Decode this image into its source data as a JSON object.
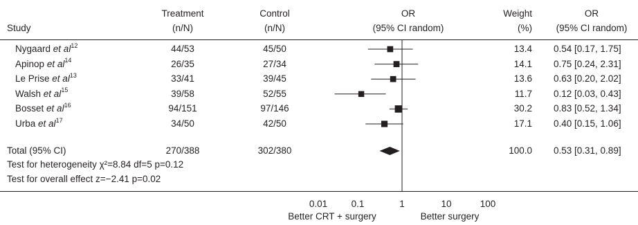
{
  "headers": {
    "study": "Study",
    "treatment": [
      "Treatment",
      "(n/N)"
    ],
    "control": [
      "Control",
      "(n/N)"
    ],
    "or_plot": [
      "OR",
      "(95% CI random)"
    ],
    "weight": [
      "Weight",
      "(%)"
    ],
    "or_text": [
      "OR",
      "(95% CI random)"
    ]
  },
  "rows": [
    {
      "study": "Nygaard",
      "etal": "et al",
      "ref": "12",
      "treatment": "44/53",
      "control": "45/50",
      "weight": "13.4",
      "or_text": "0.54 [0.17, 1.75]"
    },
    {
      "study": "Apinop",
      "etal": "et al",
      "ref": "14",
      "treatment": "26/35",
      "control": "27/34",
      "weight": "14.1",
      "or_text": "0.75 [0.24, 2.31]"
    },
    {
      "study": "Le Prise",
      "etal": "et al",
      "ref": "13",
      "treatment": "33/41",
      "control": "39/45",
      "weight": "13.6",
      "or_text": "0.63 [0.20, 2.02]"
    },
    {
      "study": "Walsh",
      "etal": "et al",
      "ref": "15",
      "treatment": "39/58",
      "control": "52/55",
      "weight": "11.7",
      "or_text": "0.12 [0.03, 0.43]"
    },
    {
      "study": "Bosset",
      "etal": "et al",
      "ref": "16",
      "treatment": "94/151",
      "control": "97/146",
      "weight": "30.2",
      "or_text": "0.83 [0.52, 1.34]"
    },
    {
      "study": "Urba",
      "etal": "et al",
      "ref": "17",
      "treatment": "34/50",
      "control": "42/50",
      "weight": "17.1",
      "or_text": "0.40 [0.15, 1.06]"
    }
  ],
  "total": {
    "label": "Total (95% CI)",
    "treatment": "270/388",
    "control": "302/380",
    "weight": "100.0",
    "or_text": "0.53 [0.31, 0.89]"
  },
  "notes": {
    "heterogeneity": "Test for heterogeneity χ²=8.84  df=5  p=0.12",
    "overall": "Test for overall effect z=−2.41  p=0.02"
  },
  "axis": {
    "ticks": [
      "0.01",
      "0.1",
      "1",
      "10",
      "100"
    ],
    "left_label": "Better CRT + surgery",
    "right_label": "Better surgery"
  },
  "chart_data": {
    "type": "forest",
    "scale": "log",
    "xlim": [
      0.01,
      100
    ],
    "ticks": [
      0.01,
      0.1,
      1,
      10,
      100
    ],
    "reference_line": 1,
    "series": [
      {
        "study": "Nygaard et al",
        "or": 0.54,
        "ci_low": 0.17,
        "ci_high": 1.75,
        "weight": 13.4
      },
      {
        "study": "Apinop et al",
        "or": 0.75,
        "ci_low": 0.24,
        "ci_high": 2.31,
        "weight": 14.1
      },
      {
        "study": "Le Prise et al",
        "or": 0.63,
        "ci_low": 0.2,
        "ci_high": 2.02,
        "weight": 13.6
      },
      {
        "study": "Walsh et al",
        "or": 0.12,
        "ci_low": 0.03,
        "ci_high": 0.43,
        "weight": 11.7
      },
      {
        "study": "Bosset et al",
        "or": 0.83,
        "ci_low": 0.52,
        "ci_high": 1.34,
        "weight": 30.2
      },
      {
        "study": "Urba et al",
        "or": 0.4,
        "ci_low": 0.15,
        "ci_high": 1.06,
        "weight": 17.1
      }
    ],
    "pooled": {
      "label": "Total (95% CI)",
      "or": 0.53,
      "ci_low": 0.31,
      "ci_high": 0.89,
      "weight": 100.0
    },
    "colors": {
      "ink": "#231f20"
    }
  }
}
